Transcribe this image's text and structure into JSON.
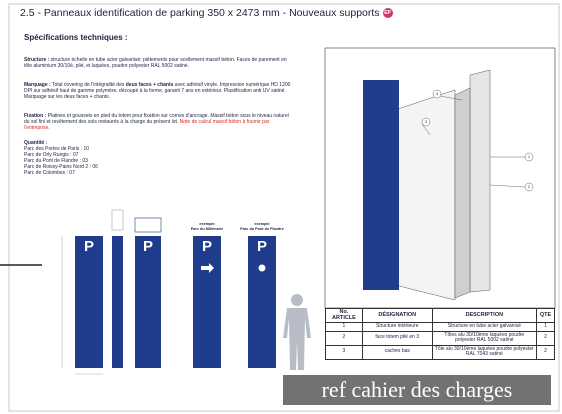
{
  "header": {
    "title": "2.5 - Panneaux identification de parking 350 x 2473 mm - Nouveaux supports",
    "badge": "EP"
  },
  "specs": {
    "heading": "Spécifications techniques :",
    "structure": {
      "label": "Structure :",
      "text": " structure échelle en tube acier galvanisé; piètements pour scellement massif béton. Faces de parement en tôle aluminium 30/10è, plié, et laquées, poudre polyester RAL 5002 satiné."
    },
    "marquage": {
      "label": "Marquage :",
      "text": " Total covering de l'intégralité des ",
      "emphasis": "deux faces + chants",
      "rest": " avec adhésif vinyle. Impression numérique HD 1200 DPI sur adhésif haut de gamme polymère, découpé à la forme, garanti 7 ans en extérieur. Plastification anti UV satiné. Marquage sur les deux faces + chants."
    },
    "fixation": {
      "label": "Fixation :",
      "text": " Platines et goussets en pied du totem pour fixation sur cornes d'ancrage. Massif béton sous le niveau naturel du sol fini et revêtement des sols restaurés à la charge du présent lot. ",
      "note": "Note de calcul massif béton à fournir par l'entreprise."
    },
    "quantite": {
      "label": "Quantité :",
      "items": [
        "Parc des Portes de Paris : 10",
        "Parc de Orly Rungis : 07",
        "Parc du Pont de Flandre : 03",
        "Parc de Roissy-Pains Nord 2 : 06",
        "Parc de Colombes : 07"
      ]
    }
  },
  "signs": {
    "letters": [
      "P",
      "P",
      "P",
      "P"
    ],
    "captions": [
      [
        "exemple",
        "Parc du Millénaire"
      ],
      [
        "exemple",
        "Parc du Pont de Flandre"
      ]
    ]
  },
  "drawing": {
    "callouts": [
      "4",
      "3",
      "1",
      "2"
    ]
  },
  "table": {
    "header": [
      "No. ARTICLE",
      "DÉSIGNATION",
      "DESCRIPTION",
      "QTE"
    ],
    "rows": [
      [
        "1",
        "Structure intérieure",
        "Structure en tube acier galvanisé",
        "1"
      ],
      [
        "2",
        "face totem plié en 3",
        "Tôles alu 30/10ème laquées poudre polyester RAL 5002 satiné",
        "2"
      ],
      [
        "3",
        "caches bas",
        "Tôle alu 30/10ème laquées poudre polyester RAL 7043 satiné",
        "2"
      ]
    ]
  },
  "overlay": "ref cahier des charges"
}
